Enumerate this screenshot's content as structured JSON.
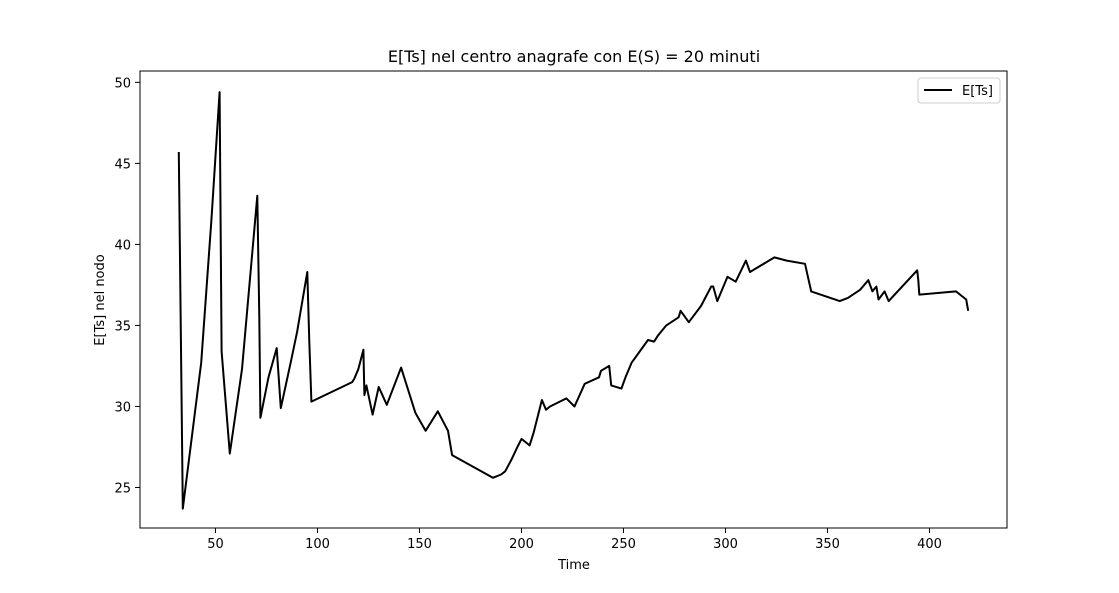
{
  "chart_data": {
    "type": "line",
    "title": "E[Ts] nel centro anagrafe con E(S) = 20 minuti",
    "xlabel": "Time",
    "ylabel": "E[Ts] nel nodo",
    "xlim": [
      13,
      438
    ],
    "ylim": [
      22.5,
      50.7
    ],
    "xticks": [
      50,
      100,
      150,
      200,
      250,
      300,
      350,
      400
    ],
    "yticks": [
      25,
      30,
      35,
      40,
      45,
      50
    ],
    "grid": false,
    "legend": {
      "position": "top-right",
      "entries": [
        "E[Ts]"
      ]
    },
    "series": [
      {
        "name": "E[Ts]",
        "color": "#000000",
        "x": [
          32,
          34,
          43,
          48,
          52,
          53,
          57,
          59,
          63,
          70.5,
          71.5,
          72,
          76,
          80,
          82,
          87,
          90,
          95,
          96,
          97,
          117,
          118,
          120,
          122.5,
          123,
          124,
          127,
          130,
          134,
          141,
          148,
          153,
          159,
          164,
          166,
          186,
          190,
          192,
          195,
          198,
          200,
          204,
          206,
          210,
          212,
          214,
          222,
          226,
          231,
          238,
          239,
          243,
          244,
          249,
          251,
          254,
          262,
          265,
          267,
          271,
          277,
          278,
          282,
          288,
          293,
          294,
          296,
          301,
          305,
          310,
          312,
          324,
          330,
          339,
          342,
          356,
          360,
          366,
          370,
          372,
          374,
          375,
          378,
          380,
          394,
          394.5,
          395,
          413,
          418,
          419
        ],
        "y": [
          45.7,
          23.7,
          32.7,
          41.5,
          49.4,
          33.4,
          27.1,
          28.8,
          32.3,
          43.0,
          35.5,
          29.3,
          31.8,
          33.6,
          29.9,
          32.8,
          34.6,
          38.3,
          34.0,
          30.3,
          31.5,
          31.7,
          32.3,
          33.5,
          30.7,
          31.3,
          29.5,
          31.2,
          30.1,
          32.4,
          29.6,
          28.5,
          29.7,
          28.5,
          27.0,
          25.6,
          25.8,
          26.0,
          26.7,
          27.5,
          28.0,
          27.6,
          28.4,
          30.4,
          29.8,
          30.0,
          30.5,
          30.0,
          31.4,
          31.8,
          32.2,
          32.5,
          31.3,
          31.1,
          31.8,
          32.7,
          34.1,
          34.0,
          34.4,
          35.0,
          35.5,
          35.9,
          35.2,
          36.2,
          37.4,
          37.4,
          36.5,
          38.0,
          37.7,
          39.0,
          38.3,
          39.2,
          39.0,
          38.8,
          37.1,
          36.5,
          36.7,
          37.2,
          37.8,
          37.1,
          37.4,
          36.6,
          37.1,
          36.5,
          38.4,
          37.8,
          36.9,
          37.1,
          36.6,
          35.9
        ]
      }
    ]
  }
}
